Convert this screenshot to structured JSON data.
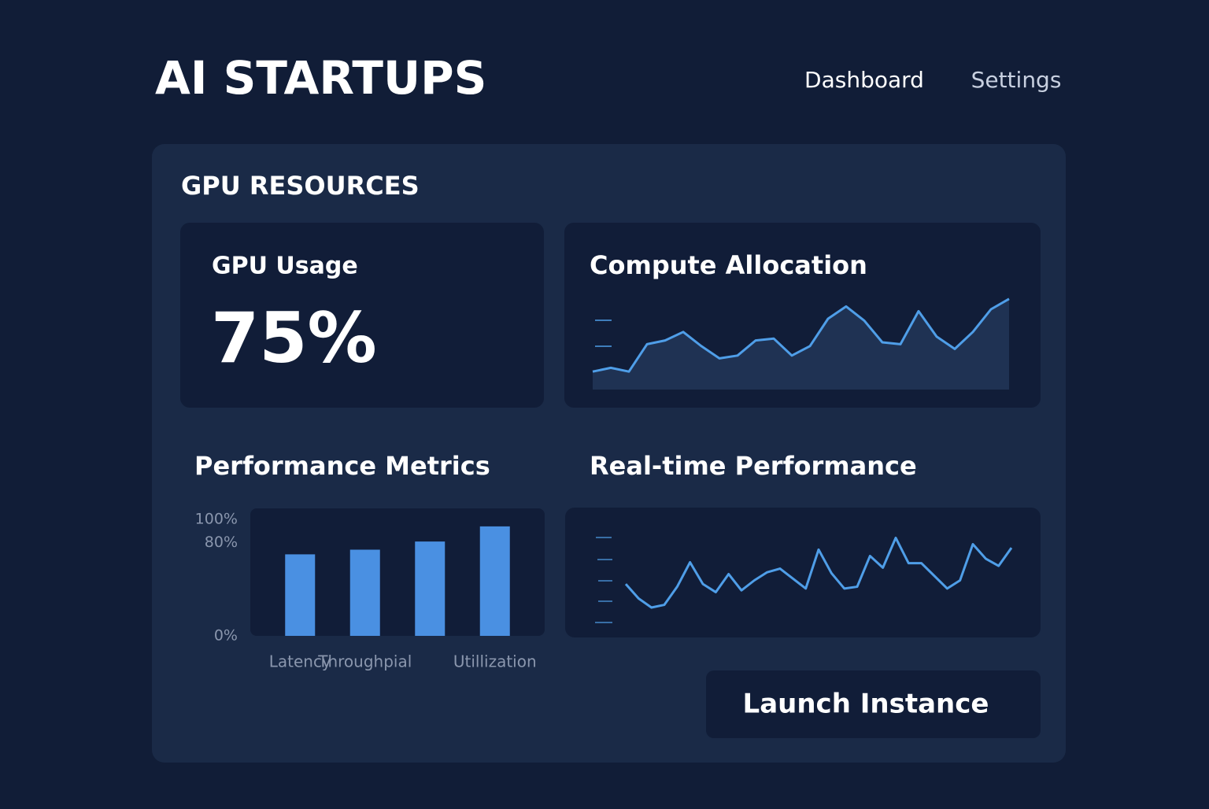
{
  "header": {
    "title": "AI STARTUPS",
    "nav": [
      "Dashboard",
      "Settings"
    ]
  },
  "panel": {
    "title": "GPU RESOURCES"
  },
  "gpu_usage": {
    "label": "GPU Usage",
    "value": "75%"
  },
  "chart_data": [
    {
      "type": "line",
      "title": "Compute Allocation",
      "color": "#4f9ee8",
      "area": true,
      "values": [
        19,
        23,
        19,
        48,
        52,
        61,
        46,
        33,
        36,
        52,
        54,
        36,
        46,
        75,
        88,
        73,
        50,
        48,
        83,
        56,
        43,
        61,
        85,
        96
      ],
      "ylim": [
        0,
        100
      ]
    },
    {
      "type": "bar",
      "title": "Performance Metrics",
      "color": "#4a90e2",
      "categories": [
        "Latency",
        "Throughpial",
        null,
        "Utillization"
      ],
      "values": [
        70,
        74,
        81,
        94
      ],
      "ylim": [
        0,
        100
      ],
      "yticks": [
        {
          "value": 100,
          "label": "100%"
        },
        {
          "value": 80,
          "label": "80%"
        },
        {
          "value": 0,
          "label": "0%"
        }
      ]
    },
    {
      "type": "line",
      "title": "Real-time Performance",
      "color": "#4f9ee8",
      "area": false,
      "values": [
        46,
        30,
        20,
        23,
        43,
        70,
        46,
        37,
        57,
        39,
        50,
        59,
        63,
        52,
        41,
        84,
        58,
        41,
        43,
        77,
        64,
        97,
        69,
        69,
        55,
        41,
        50,
        90,
        74,
        66,
        86
      ],
      "ylim": [
        0,
        100
      ]
    }
  ],
  "button": {
    "label": "Launch Instance"
  }
}
